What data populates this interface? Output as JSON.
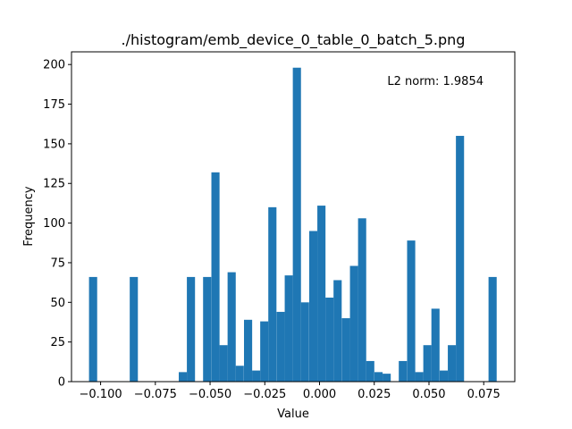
{
  "chart_data": {
    "type": "bar",
    "title": "./histogram/emb_device_0_table_0_batch_5.png",
    "xlabel": "Value",
    "ylabel": "Frequency",
    "annotation": "L2 norm: 1.9854",
    "xlim": [
      -0.1133,
      0.0892
    ],
    "ylim": [
      0,
      208
    ],
    "grid": false,
    "bar_color": "#1f77b4",
    "bin_width": 0.003722,
    "bins": [
      {
        "x": -0.1053,
        "value": 66
      },
      {
        "x": -0.1016,
        "value": 0
      },
      {
        "x": -0.0979,
        "value": 0
      },
      {
        "x": -0.0941,
        "value": 0
      },
      {
        "x": -0.0904,
        "value": 0
      },
      {
        "x": -0.0867,
        "value": 66
      },
      {
        "x": -0.083,
        "value": 0
      },
      {
        "x": -0.0792,
        "value": 0
      },
      {
        "x": -0.0755,
        "value": 0
      },
      {
        "x": -0.0718,
        "value": 0
      },
      {
        "x": -0.0681,
        "value": 0
      },
      {
        "x": -0.0643,
        "value": 6
      },
      {
        "x": -0.0606,
        "value": 66
      },
      {
        "x": -0.0569,
        "value": 0
      },
      {
        "x": -0.0532,
        "value": 66
      },
      {
        "x": -0.0494,
        "value": 132
      },
      {
        "x": -0.0457,
        "value": 23
      },
      {
        "x": -0.042,
        "value": 69
      },
      {
        "x": -0.0383,
        "value": 10
      },
      {
        "x": -0.0345,
        "value": 39
      },
      {
        "x": -0.0308,
        "value": 7
      },
      {
        "x": -0.0271,
        "value": 38
      },
      {
        "x": -0.0234,
        "value": 110
      },
      {
        "x": -0.0196,
        "value": 44
      },
      {
        "x": -0.0159,
        "value": 67
      },
      {
        "x": -0.0122,
        "value": 198
      },
      {
        "x": -0.0085,
        "value": 50
      },
      {
        "x": -0.0047,
        "value": 95
      },
      {
        "x": -0.001,
        "value": 111
      },
      {
        "x": 0.0027,
        "value": 53
      },
      {
        "x": 0.0064,
        "value": 64
      },
      {
        "x": 0.0102,
        "value": 40
      },
      {
        "x": 0.0139,
        "value": 73
      },
      {
        "x": 0.0176,
        "value": 103
      },
      {
        "x": 0.0213,
        "value": 13
      },
      {
        "x": 0.0251,
        "value": 6
      },
      {
        "x": 0.0288,
        "value": 5
      },
      {
        "x": 0.0325,
        "value": 0
      },
      {
        "x": 0.0362,
        "value": 13
      },
      {
        "x": 0.04,
        "value": 89
      },
      {
        "x": 0.0437,
        "value": 6
      },
      {
        "x": 0.0474,
        "value": 23
      },
      {
        "x": 0.0511,
        "value": 46
      },
      {
        "x": 0.0549,
        "value": 7
      },
      {
        "x": 0.0586,
        "value": 23
      },
      {
        "x": 0.0623,
        "value": 155
      },
      {
        "x": 0.066,
        "value": 0
      },
      {
        "x": 0.0698,
        "value": 0
      },
      {
        "x": 0.0735,
        "value": 0
      },
      {
        "x": 0.0772,
        "value": 66
      }
    ],
    "x_ticks": [
      {
        "value": -0.1,
        "label": "−0.100"
      },
      {
        "value": -0.075,
        "label": "−0.075"
      },
      {
        "value": -0.05,
        "label": "−0.050"
      },
      {
        "value": -0.025,
        "label": "−0.025"
      },
      {
        "value": 0.0,
        "label": "0.000"
      },
      {
        "value": 0.025,
        "label": "0.025"
      },
      {
        "value": 0.05,
        "label": "0.050"
      },
      {
        "value": 0.075,
        "label": "0.075"
      }
    ],
    "y_ticks": [
      {
        "value": 0,
        "label": "0"
      },
      {
        "value": 25,
        "label": "25"
      },
      {
        "value": 50,
        "label": "50"
      },
      {
        "value": 75,
        "label": "75"
      },
      {
        "value": 100,
        "label": "100"
      },
      {
        "value": 125,
        "label": "125"
      },
      {
        "value": 150,
        "label": "150"
      },
      {
        "value": 175,
        "label": "175"
      },
      {
        "value": 200,
        "label": "200"
      }
    ]
  }
}
